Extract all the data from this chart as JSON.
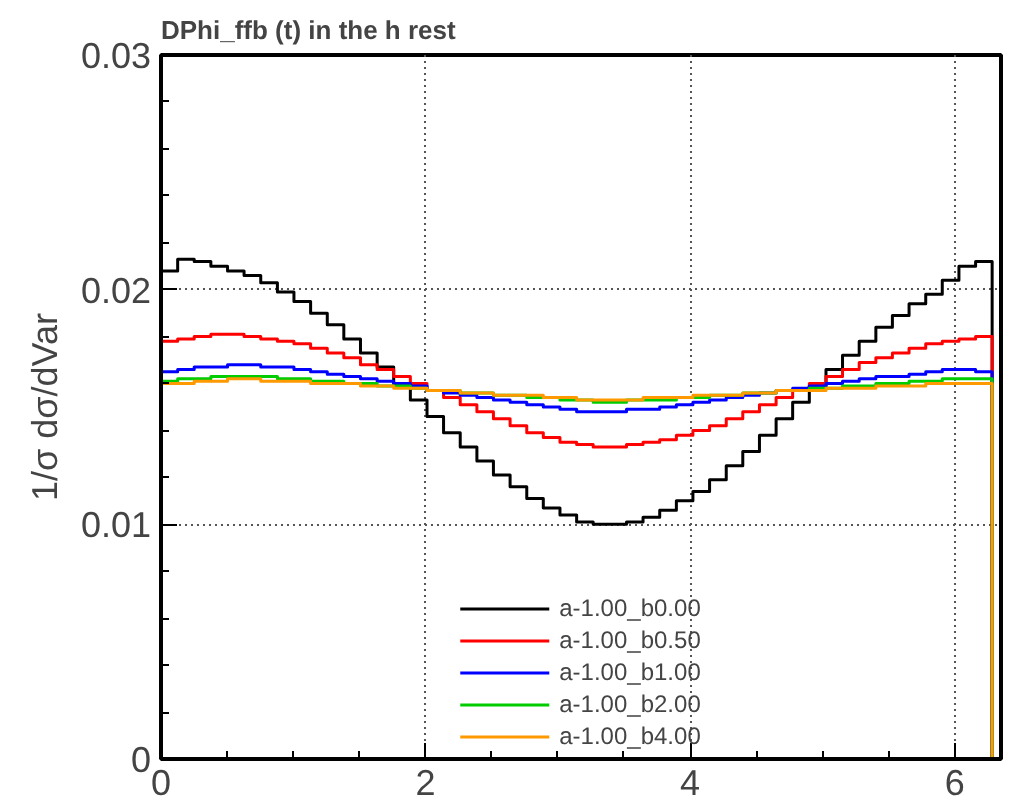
{
  "chart_data": {
    "type": "histogram",
    "title": "DPhi_ffb (t)   in the h rest",
    "ylabel": "1/σ dσ/dVar",
    "bins": [
      0,
      0.126,
      0.251,
      0.377,
      0.503,
      0.628,
      0.754,
      0.88,
      1.005,
      1.131,
      1.257,
      1.382,
      1.508,
      1.634,
      1.759,
      1.885,
      2.011,
      2.136,
      2.262,
      2.388,
      2.513,
      2.639,
      2.765,
      2.89,
      3.016,
      3.142,
      3.267,
      3.393,
      3.519,
      3.644,
      3.77,
      3.896,
      4.021,
      4.147,
      4.273,
      4.398,
      4.524,
      4.65,
      4.775,
      4.901,
      5.027,
      5.152,
      5.278,
      5.404,
      5.529,
      5.655,
      5.781,
      5.906,
      6.032,
      6.158,
      6.283
    ],
    "series": [
      {
        "name": "a-1.00_b0.00",
        "color": "#000000",
        "values": [
          0.0208,
          0.0213,
          0.0212,
          0.021,
          0.0208,
          0.0206,
          0.0203,
          0.0199,
          0.0195,
          0.019,
          0.0185,
          0.0179,
          0.0173,
          0.0167,
          0.016,
          0.0153,
          0.0146,
          0.0139,
          0.0133,
          0.0127,
          0.0121,
          0.0116,
          0.0111,
          0.0107,
          0.0104,
          0.0101,
          0.01,
          0.01,
          0.0101,
          0.0103,
          0.0106,
          0.011,
          0.0114,
          0.0119,
          0.0125,
          0.0131,
          0.0138,
          0.0145,
          0.0152,
          0.0159,
          0.0166,
          0.0172,
          0.0178,
          0.0184,
          0.0189,
          0.0194,
          0.0198,
          0.0204,
          0.021,
          0.0212
        ]
      },
      {
        "name": "a-1.00_b0.50",
        "color": "#ff0000",
        "values": [
          0.0178,
          0.0179,
          0.018,
          0.0181,
          0.0181,
          0.018,
          0.0179,
          0.0178,
          0.0177,
          0.0175,
          0.0173,
          0.0171,
          0.0168,
          0.0166,
          0.0163,
          0.016,
          0.0157,
          0.0154,
          0.0151,
          0.0148,
          0.0145,
          0.0142,
          0.0139,
          0.0137,
          0.0135,
          0.0134,
          0.0133,
          0.0133,
          0.0134,
          0.0135,
          0.0136,
          0.0138,
          0.014,
          0.0142,
          0.0145,
          0.0148,
          0.0151,
          0.0154,
          0.0157,
          0.016,
          0.0163,
          0.0166,
          0.0169,
          0.0171,
          0.0173,
          0.0175,
          0.0177,
          0.0178,
          0.0179,
          0.018
        ]
      },
      {
        "name": "a-1.00_b1.00",
        "color": "#0000ff",
        "values": [
          0.0165,
          0.0166,
          0.0167,
          0.0167,
          0.0168,
          0.0168,
          0.0167,
          0.0167,
          0.0166,
          0.0165,
          0.0164,
          0.0163,
          0.0162,
          0.0161,
          0.016,
          0.0159,
          0.0157,
          0.0156,
          0.0155,
          0.0154,
          0.0153,
          0.0152,
          0.0151,
          0.015,
          0.0149,
          0.0148,
          0.0148,
          0.0148,
          0.0149,
          0.0149,
          0.015,
          0.0151,
          0.0152,
          0.0153,
          0.0154,
          0.0155,
          0.0156,
          0.0157,
          0.0158,
          0.0159,
          0.016,
          0.0161,
          0.0162,
          0.0163,
          0.0163,
          0.0164,
          0.0165,
          0.0166,
          0.0166,
          0.0165
        ]
      },
      {
        "name": "a-1.00_b2.00",
        "color": "#00cc00",
        "values": [
          0.0161,
          0.0162,
          0.0162,
          0.0163,
          0.0163,
          0.0163,
          0.0163,
          0.0162,
          0.0162,
          0.0161,
          0.0161,
          0.016,
          0.016,
          0.0159,
          0.0159,
          0.0158,
          0.0157,
          0.0157,
          0.0156,
          0.0156,
          0.0155,
          0.0155,
          0.0154,
          0.0154,
          0.0153,
          0.0153,
          0.0152,
          0.0152,
          0.0153,
          0.0153,
          0.0153,
          0.0154,
          0.0154,
          0.0155,
          0.0155,
          0.0156,
          0.0156,
          0.0157,
          0.0157,
          0.0158,
          0.0158,
          0.0159,
          0.0159,
          0.016,
          0.016,
          0.0161,
          0.0161,
          0.0162,
          0.0162,
          0.0162
        ]
      },
      {
        "name": "a-1.00_b4.00",
        "color": "#ff9900",
        "values": [
          0.016,
          0.016,
          0.0161,
          0.0161,
          0.0162,
          0.0162,
          0.0161,
          0.0161,
          0.0161,
          0.016,
          0.016,
          0.016,
          0.0159,
          0.0159,
          0.0158,
          0.0158,
          0.0157,
          0.0157,
          0.0156,
          0.0156,
          0.0155,
          0.0155,
          0.0155,
          0.0154,
          0.0154,
          0.0153,
          0.0153,
          0.0153,
          0.0153,
          0.0154,
          0.0154,
          0.0154,
          0.0155,
          0.0155,
          0.0155,
          0.0156,
          0.0156,
          0.0157,
          0.0157,
          0.0157,
          0.0158,
          0.0158,
          0.0158,
          0.0159,
          0.0159,
          0.0159,
          0.016,
          0.016,
          0.016,
          0.016
        ]
      }
    ],
    "xlim": [
      0,
      6.35
    ],
    "ylim": [
      0,
      0.03
    ],
    "xticks": [
      0,
      2,
      4,
      6
    ],
    "yticks": [
      0,
      0.01,
      0.02,
      0.03
    ],
    "grid": true,
    "legend": "bottom"
  }
}
